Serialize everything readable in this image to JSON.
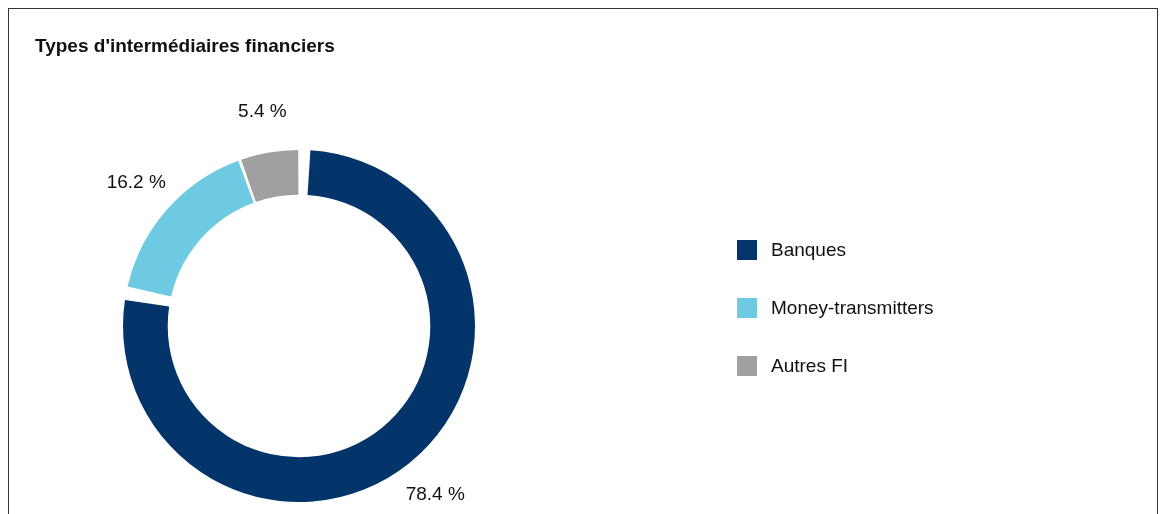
{
  "chart_data": {
    "type": "donut",
    "title": "Types d'intermédiaires financiers",
    "categories": [
      "Banques",
      "Money-transmitters",
      "Autres FI"
    ],
    "values": [
      78.4,
      16.2,
      5.4
    ],
    "colors": [
      "#03356b",
      "#6ecae3",
      "#a0a0a0"
    ],
    "value_labels": [
      "78.4 %",
      "16.2 %",
      "5.4 %"
    ],
    "legend": "right"
  }
}
